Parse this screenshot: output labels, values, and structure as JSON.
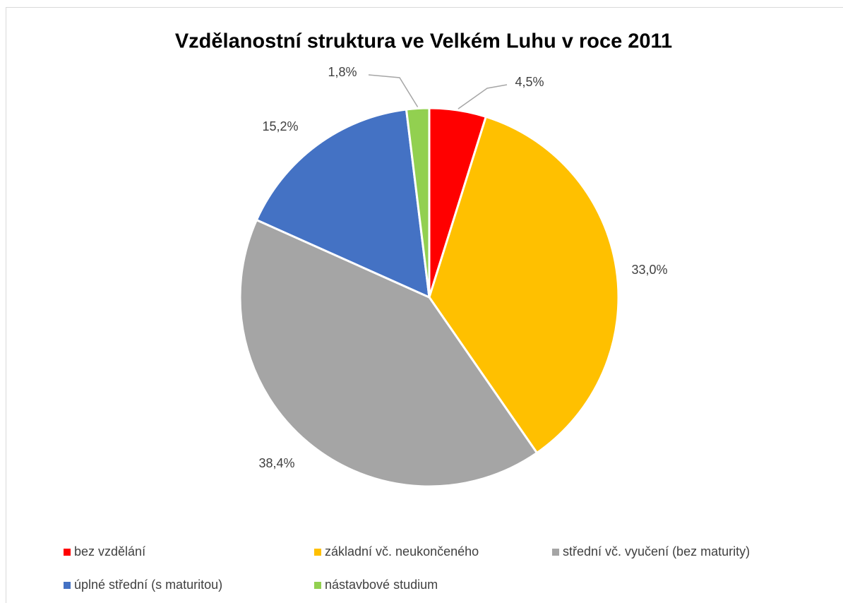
{
  "chart_data": {
    "type": "pie",
    "title": "Vzdělanostní struktura ve Velkém Luhu v roce 2011",
    "categories": [
      "bez vzdělání",
      "základní vč. neukončeného",
      "střední vč. vyučení (bez maturity)",
      "úplné střední (s maturitou)",
      "nástavbové studium"
    ],
    "values": [
      4.5,
      33.0,
      38.4,
      15.2,
      1.8
    ],
    "value_labels": [
      "4,5%",
      "33,0%",
      "38,4%",
      "15,2%",
      "1,8%"
    ],
    "colors": [
      "#ff0000",
      "#ffc000",
      "#a5a5a5",
      "#4472c4",
      "#92d050"
    ],
    "legend": "bottom"
  }
}
